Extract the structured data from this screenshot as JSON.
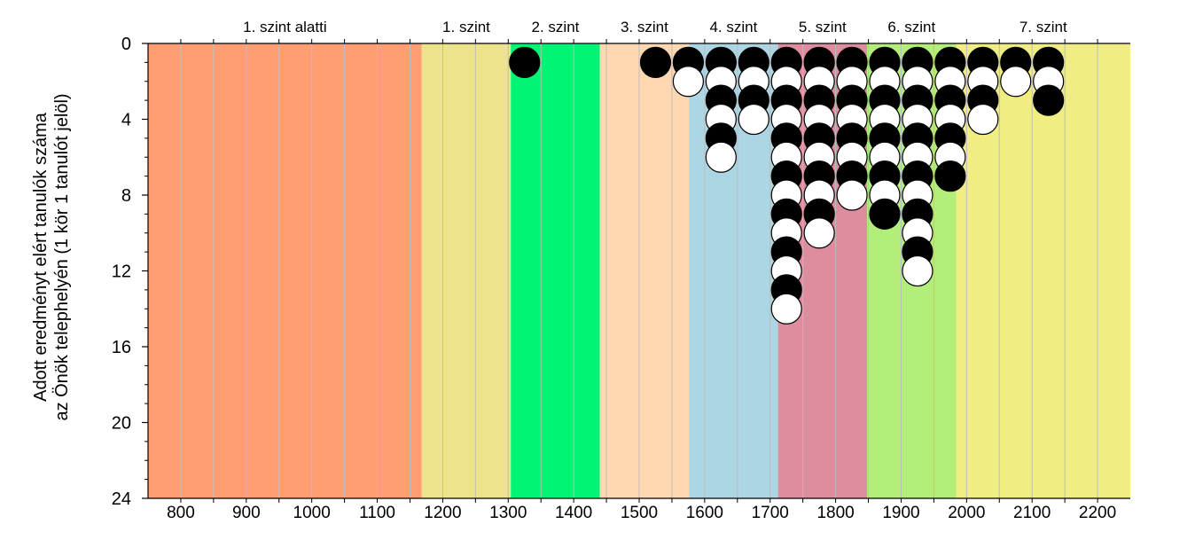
{
  "chart_data": {
    "type": "scatter",
    "ylabel_line1": "Adott eredményt elért tanulók száma",
    "ylabel_line2": "az Önök telephelyén (1 kör 1 tanulót jelöl)",
    "xlim": [
      750,
      2250
    ],
    "ylim": [
      0,
      24
    ],
    "y_inverted": true,
    "x_ticks": [
      800,
      900,
      1000,
      1100,
      1200,
      1300,
      1400,
      1500,
      1600,
      1700,
      1800,
      1900,
      2000,
      2100,
      2200
    ],
    "x_tick_labels": [
      "800",
      "900",
      "1000",
      "1100",
      "1200",
      "1300",
      "1400",
      "1500",
      "1600",
      "1700",
      "1800",
      "1900",
      "2000",
      "2100",
      "2200"
    ],
    "x_minor_step": 50,
    "y_ticks": [
      0,
      4,
      8,
      12,
      16,
      20,
      24
    ],
    "y_tick_labels": [
      "0",
      "4",
      "8",
      "12",
      "16",
      "20",
      "24"
    ],
    "grid": "vertical",
    "bands": [
      {
        "label": "1. szint alatti",
        "from": 750,
        "to": 1168,
        "color": "#ff9e72"
      },
      {
        "label": "1. szint",
        "from": 1168,
        "to": 1304,
        "color": "#ede38a"
      },
      {
        "label": "2. szint",
        "from": 1304,
        "to": 1440,
        "color": "#00f574"
      },
      {
        "label": "3. szint",
        "from": 1440,
        "to": 1576,
        "color": "#ffd7b0"
      },
      {
        "label": "4. szint",
        "from": 1576,
        "to": 1712,
        "color": "#acd6e3"
      },
      {
        "label": "5. szint",
        "from": 1712,
        "to": 1848,
        "color": "#de8d9f"
      },
      {
        "label": "6. szint",
        "from": 1848,
        "to": 1984,
        "color": "#b3ee7b"
      },
      {
        "label": "7. szint",
        "from": 1984,
        "to": 2250,
        "color": "#f0ee82"
      }
    ],
    "columns": [
      {
        "x": 1325,
        "count": 1
      },
      {
        "x": 1525,
        "count": 1
      },
      {
        "x": 1575,
        "count": 2
      },
      {
        "x": 1625,
        "count": 6
      },
      {
        "x": 1675,
        "count": 4
      },
      {
        "x": 1725,
        "count": 14
      },
      {
        "x": 1775,
        "count": 10
      },
      {
        "x": 1825,
        "count": 8
      },
      {
        "x": 1875,
        "count": 9
      },
      {
        "x": 1925,
        "count": 12
      },
      {
        "x": 1975,
        "count": 7
      },
      {
        "x": 2025,
        "count": 4
      },
      {
        "x": 2075,
        "count": 2
      },
      {
        "x": 2125,
        "count": 3
      }
    ],
    "marker_colors": {
      "odd": "#000000",
      "even": "#ffffff",
      "outline": "#000000"
    }
  }
}
